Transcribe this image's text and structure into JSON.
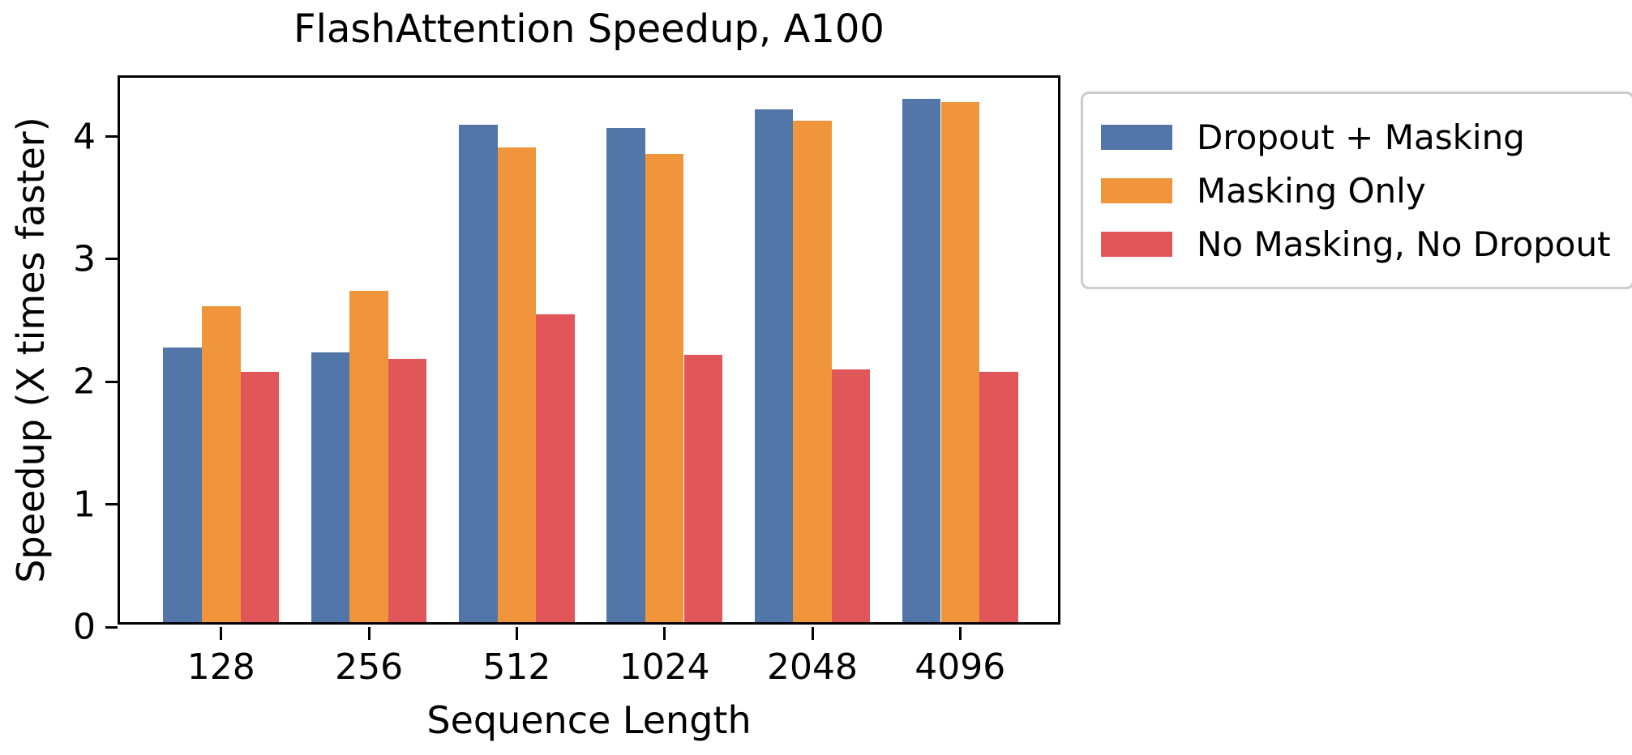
{
  "chart_data": {
    "type": "bar",
    "title": "FlashAttention Speedup, A100",
    "xlabel": "Sequence Length",
    "ylabel": "Speedup (X times faster)",
    "categories": [
      "128",
      "256",
      "512",
      "1024",
      "2048",
      "4096"
    ],
    "series": [
      {
        "name": "Dropout + Masking",
        "color": "#5276A8",
        "values": [
          2.24,
          2.2,
          4.06,
          4.03,
          4.18,
          4.27
        ]
      },
      {
        "name": "Masking Only",
        "color": "#F0953B",
        "values": [
          2.58,
          2.7,
          3.87,
          3.82,
          4.09,
          4.24
        ]
      },
      {
        "name": "No Masking, No Dropout",
        "color": "#E15759",
        "values": [
          2.04,
          2.15,
          2.51,
          2.18,
          2.06,
          2.04
        ]
      }
    ],
    "yticks": [
      0,
      1,
      2,
      3,
      4
    ],
    "ylim": [
      0,
      4.48
    ],
    "grid": false,
    "legend_position": "outside-right",
    "axis_color": "#000000",
    "legend_border_color": "#cccccc"
  }
}
